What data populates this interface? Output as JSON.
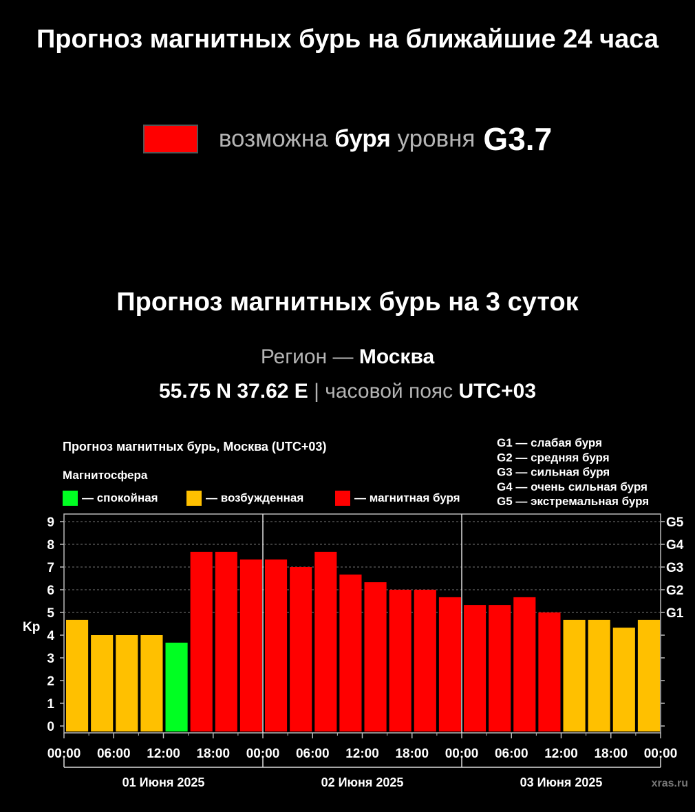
{
  "header": {
    "title": "Прогноз магнитных бурь на ближайшие 24 часа",
    "status_prefix": "возможна",
    "status_bold": "буря",
    "status_mid": "уровня",
    "status_level": "G3.7",
    "status_color": "#ff0000"
  },
  "forecast": {
    "title": "Прогноз магнитных бурь на 3 суток",
    "region_label": "Регион —",
    "region_value": "Москва",
    "coords": "55.75 N 37.62 E",
    "separator": "|",
    "tz_label": "часовой пояс",
    "tz_value": "UTC+03"
  },
  "chart_data": {
    "type": "bar",
    "title": "Прогноз магнитных бурь, Москва (UTC+03)",
    "legend_title": "Магнитосфера",
    "legend": [
      {
        "label": "— спокойная",
        "color": "#00ff22"
      },
      {
        "label": "— возбужденная",
        "color": "#ffc000"
      },
      {
        "label": "— магнитная буря",
        "color": "#ff0000"
      }
    ],
    "g_legend": [
      "G1 — слабая буря",
      "G2 — средняя буря",
      "G3 — сильная буря",
      "G4 — очень сильная буря",
      "G5 — экстремальная буря"
    ],
    "ylabel": "Kp",
    "ylim": [
      0,
      9
    ],
    "yticks": [
      "0",
      "1",
      "2",
      "3",
      "4",
      "5",
      "6",
      "7",
      "8",
      "9"
    ],
    "g_ticks": [
      {
        "label": "G1",
        "kp": 5
      },
      {
        "label": "G2",
        "kp": 6
      },
      {
        "label": "G3",
        "kp": 7
      },
      {
        "label": "G4",
        "kp": 8
      },
      {
        "label": "G5",
        "kp": 9
      }
    ],
    "time_ticks": [
      "00:00",
      "06:00",
      "12:00",
      "18:00",
      "00:00",
      "06:00",
      "12:00",
      "18:00",
      "00:00",
      "06:00",
      "12:00",
      "18:00",
      "00:00"
    ],
    "days": [
      "01 Июня 2025",
      "02 Июня 2025",
      "03 Июня 2025"
    ],
    "values": [
      4.67,
      4.0,
      4.0,
      4.0,
      3.67,
      7.67,
      7.67,
      7.33,
      7.33,
      7.0,
      7.67,
      6.67,
      6.33,
      6.0,
      6.0,
      5.67,
      5.33,
      5.33,
      5.67,
      5.0,
      4.67,
      4.67,
      4.33,
      4.67
    ],
    "colors": [
      "#ffc000",
      "#ffc000",
      "#ffc000",
      "#ffc000",
      "#00ff22",
      "#ff0000",
      "#ff0000",
      "#ff0000",
      "#ff0000",
      "#ff0000",
      "#ff0000",
      "#ff0000",
      "#ff0000",
      "#ff0000",
      "#ff0000",
      "#ff0000",
      "#ff0000",
      "#ff0000",
      "#ff0000",
      "#ff0000",
      "#ffc000",
      "#ffc000",
      "#ffc000",
      "#ffc000"
    ],
    "grid": true,
    "watermark": "xras.ru"
  }
}
